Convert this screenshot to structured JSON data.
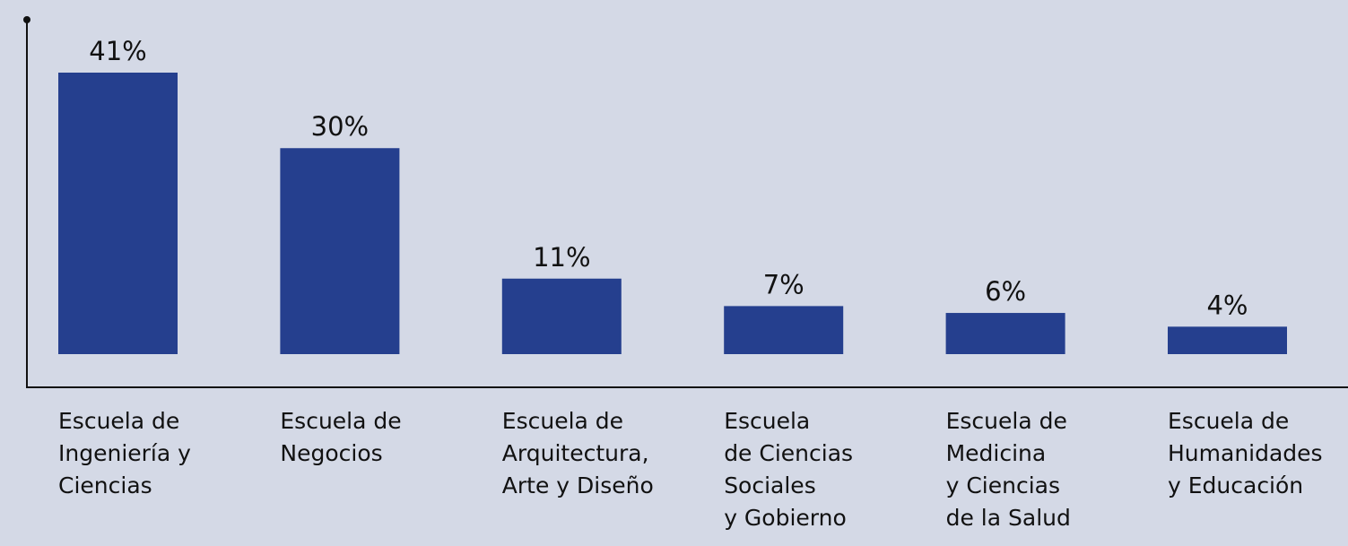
{
  "chart_data": {
    "type": "bar",
    "categories": [
      "Escuela de\nIngeniería y\nCiencias",
      "Escuela de\nNegocios",
      "Escuela de\nArquitectura,\nArte y Diseño",
      "Escuela\nde Ciencias\nSociales\ny Gobierno",
      "Escuela de\nMedicina\ny Ciencias\nde la Salud",
      "Escuela de\nHumanidades\ny Educación"
    ],
    "values": [
      41,
      30,
      11,
      7,
      6,
      4
    ],
    "value_labels": [
      "41%",
      "30%",
      "11%",
      "7%",
      "6%",
      "4%"
    ],
    "color": "#253f8e"
  }
}
